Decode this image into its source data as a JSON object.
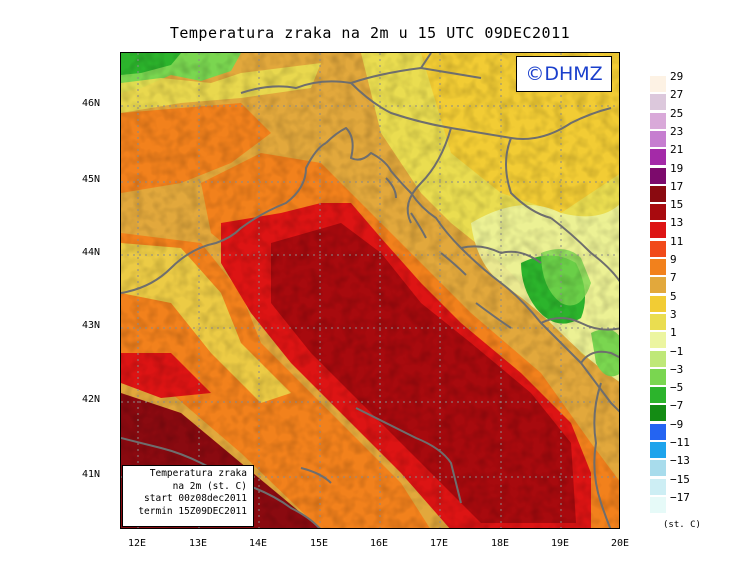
{
  "title": "Temperatura zraka na 2m u 15 UTC 09DEC2011",
  "copyright": "©DHMZ",
  "info_box": {
    "line1": "Temperatura zraka",
    "line2": "na 2m (st. C)",
    "line3": "start 00z08dec2011",
    "line4": "termin 15Z09DEC2011"
  },
  "lat_labels": [
    "46N",
    "45N",
    "44N",
    "43N",
    "42N",
    "41N"
  ],
  "lon_labels": [
    "12E",
    "13E",
    "14E",
    "15E",
    "16E",
    "17E",
    "18E",
    "19E",
    "20E"
  ],
  "legend": {
    "labels": [
      "29",
      "27",
      "25",
      "23",
      "21",
      "19",
      "17",
      "15",
      "13",
      "11",
      "9",
      "7",
      "5",
      "3",
      "1",
      "−1",
      "−3",
      "−5",
      "−7",
      "−9",
      "−11",
      "−13",
      "−15",
      "−17"
    ],
    "colors": [
      "#fdf2e4",
      "#dcc8dc",
      "#d9a9d9",
      "#c67ed0",
      "#a42aa8",
      "#7c0a6c",
      "#8a0a10",
      "#a80a0e",
      "#dd1414",
      "#f14a1a",
      "#f2811c",
      "#e2a83c",
      "#f2cc34",
      "#eadd50",
      "#ecf5a0",
      "#bfe878",
      "#7ad650",
      "#2cb42c",
      "#148c14",
      "#2464f2",
      "#1ea4ec",
      "#a8dcec",
      "#cdeef4",
      "#e6faf8"
    ],
    "unit": "(st. C)"
  }
}
